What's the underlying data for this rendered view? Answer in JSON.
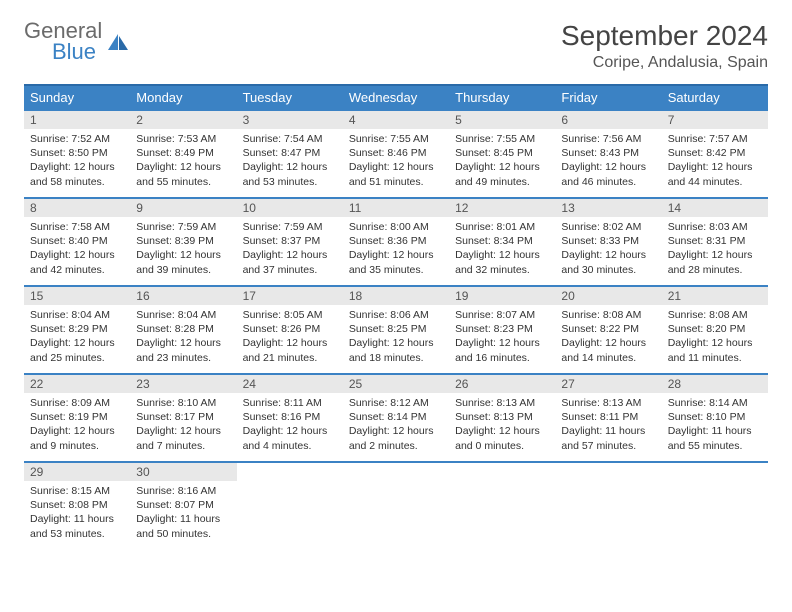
{
  "brand": {
    "general": "General",
    "blue": "Blue"
  },
  "title": "September 2024",
  "location": "Coripe, Andalusia, Spain",
  "colors": {
    "header_bg": "#3b82c4",
    "header_border": "#2a6aa8",
    "cell_border": "#3b82c4",
    "daynum_bg": "#e8e8e8",
    "text": "#333333",
    "logo_gray": "#6b6b6b",
    "logo_blue": "#3b82c4",
    "page_bg": "#ffffff"
  },
  "weekdays": [
    "Sunday",
    "Monday",
    "Tuesday",
    "Wednesday",
    "Thursday",
    "Friday",
    "Saturday"
  ],
  "weeks": [
    [
      {
        "n": "1",
        "sr": "7:52 AM",
        "ss": "8:50 PM",
        "dh": "12",
        "dm": "58"
      },
      {
        "n": "2",
        "sr": "7:53 AM",
        "ss": "8:49 PM",
        "dh": "12",
        "dm": "55"
      },
      {
        "n": "3",
        "sr": "7:54 AM",
        "ss": "8:47 PM",
        "dh": "12",
        "dm": "53"
      },
      {
        "n": "4",
        "sr": "7:55 AM",
        "ss": "8:46 PM",
        "dh": "12",
        "dm": "51"
      },
      {
        "n": "5",
        "sr": "7:55 AM",
        "ss": "8:45 PM",
        "dh": "12",
        "dm": "49"
      },
      {
        "n": "6",
        "sr": "7:56 AM",
        "ss": "8:43 PM",
        "dh": "12",
        "dm": "46"
      },
      {
        "n": "7",
        "sr": "7:57 AM",
        "ss": "8:42 PM",
        "dh": "12",
        "dm": "44"
      }
    ],
    [
      {
        "n": "8",
        "sr": "7:58 AM",
        "ss": "8:40 PM",
        "dh": "12",
        "dm": "42"
      },
      {
        "n": "9",
        "sr": "7:59 AM",
        "ss": "8:39 PM",
        "dh": "12",
        "dm": "39"
      },
      {
        "n": "10",
        "sr": "7:59 AM",
        "ss": "8:37 PM",
        "dh": "12",
        "dm": "37"
      },
      {
        "n": "11",
        "sr": "8:00 AM",
        "ss": "8:36 PM",
        "dh": "12",
        "dm": "35"
      },
      {
        "n": "12",
        "sr": "8:01 AM",
        "ss": "8:34 PM",
        "dh": "12",
        "dm": "32"
      },
      {
        "n": "13",
        "sr": "8:02 AM",
        "ss": "8:33 PM",
        "dh": "12",
        "dm": "30"
      },
      {
        "n": "14",
        "sr": "8:03 AM",
        "ss": "8:31 PM",
        "dh": "12",
        "dm": "28"
      }
    ],
    [
      {
        "n": "15",
        "sr": "8:04 AM",
        "ss": "8:29 PM",
        "dh": "12",
        "dm": "25"
      },
      {
        "n": "16",
        "sr": "8:04 AM",
        "ss": "8:28 PM",
        "dh": "12",
        "dm": "23"
      },
      {
        "n": "17",
        "sr": "8:05 AM",
        "ss": "8:26 PM",
        "dh": "12",
        "dm": "21"
      },
      {
        "n": "18",
        "sr": "8:06 AM",
        "ss": "8:25 PM",
        "dh": "12",
        "dm": "18"
      },
      {
        "n": "19",
        "sr": "8:07 AM",
        "ss": "8:23 PM",
        "dh": "12",
        "dm": "16"
      },
      {
        "n": "20",
        "sr": "8:08 AM",
        "ss": "8:22 PM",
        "dh": "12",
        "dm": "14"
      },
      {
        "n": "21",
        "sr": "8:08 AM",
        "ss": "8:20 PM",
        "dh": "12",
        "dm": "11"
      }
    ],
    [
      {
        "n": "22",
        "sr": "8:09 AM",
        "ss": "8:19 PM",
        "dh": "12",
        "dm": "9"
      },
      {
        "n": "23",
        "sr": "8:10 AM",
        "ss": "8:17 PM",
        "dh": "12",
        "dm": "7"
      },
      {
        "n": "24",
        "sr": "8:11 AM",
        "ss": "8:16 PM",
        "dh": "12",
        "dm": "4"
      },
      {
        "n": "25",
        "sr": "8:12 AM",
        "ss": "8:14 PM",
        "dh": "12",
        "dm": "2"
      },
      {
        "n": "26",
        "sr": "8:13 AM",
        "ss": "8:13 PM",
        "dh": "12",
        "dm": "0"
      },
      {
        "n": "27",
        "sr": "8:13 AM",
        "ss": "8:11 PM",
        "dh": "11",
        "dm": "57"
      },
      {
        "n": "28",
        "sr": "8:14 AM",
        "ss": "8:10 PM",
        "dh": "11",
        "dm": "55"
      }
    ],
    [
      {
        "n": "29",
        "sr": "8:15 AM",
        "ss": "8:08 PM",
        "dh": "11",
        "dm": "53"
      },
      {
        "n": "30",
        "sr": "8:16 AM",
        "ss": "8:07 PM",
        "dh": "11",
        "dm": "50"
      },
      null,
      null,
      null,
      null,
      null
    ]
  ]
}
